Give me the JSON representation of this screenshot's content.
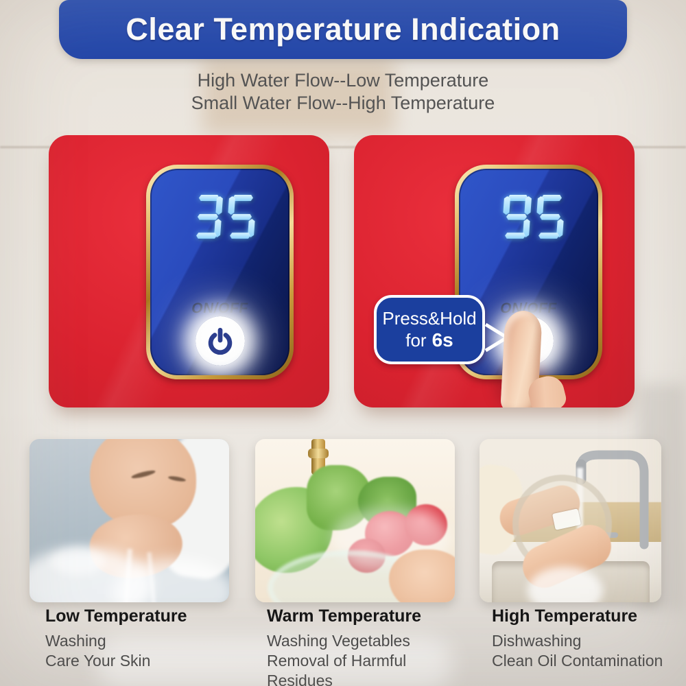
{
  "banner": {
    "title": "Clear Temperature Indication"
  },
  "subtitle": {
    "line1": "High Water Flow--Low Temperature",
    "line2": "Small Water Flow--High Temperature"
  },
  "devices": {
    "left": {
      "temperature": "35",
      "button_label": "ON/OFF",
      "icon": "power-icon"
    },
    "right": {
      "temperature": "95",
      "button_label": "ON/OFF",
      "icon": "power-icon",
      "callout": {
        "line1": "Press&Hold",
        "line2_prefix": "for",
        "line2_bold": "6s"
      }
    }
  },
  "usage_cards": [
    {
      "title": "Low Temperature",
      "lines": [
        "Washing",
        "Care Your Skin"
      ],
      "photo": "woman-splashing-water-on-face"
    },
    {
      "title": "Warm Temperature",
      "lines": [
        "Washing Vegetables",
        "Removal of Harmful",
        "Residues"
      ],
      "photo": "rinsing-vegetables-under-gold-faucet"
    },
    {
      "title": "High Temperature",
      "lines": [
        "Dishwashing",
        "Clean Oil Contamination"
      ],
      "photo": "hands-washing-dish-under-steel-faucet"
    }
  ],
  "colors": {
    "banner_blue": "#2549ad",
    "device_red": "#d8222e",
    "screen_blue_dark": "#0d1b57",
    "screen_blue_light": "#3056c9",
    "digit_cyan": "#9fdcff",
    "bezel_gold": "#d3a855",
    "callout_blue": "#1b3f9e",
    "power_icon_navy": "#2c3e8e"
  }
}
